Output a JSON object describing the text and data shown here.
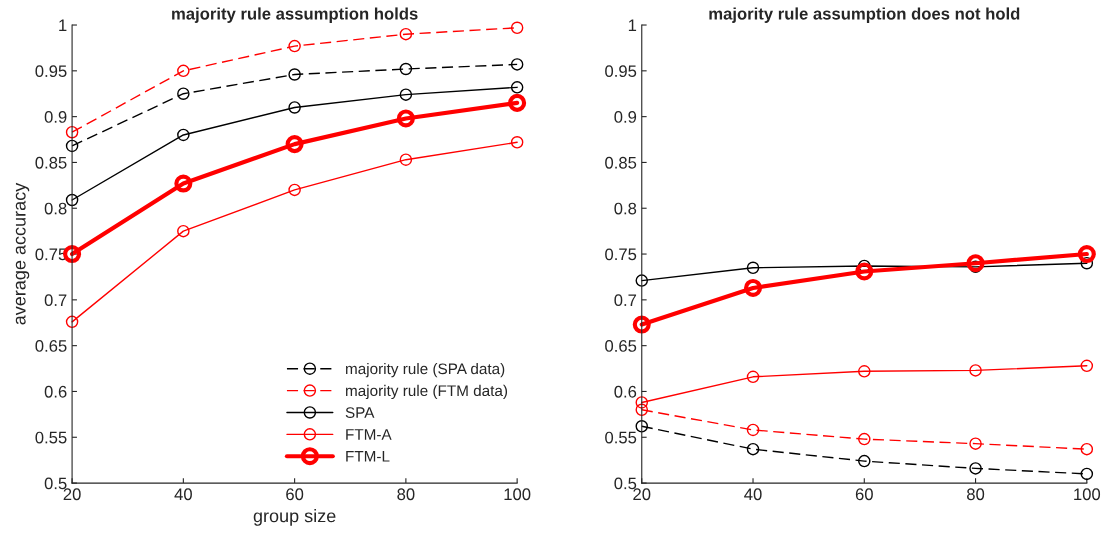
{
  "chart_data": [
    {
      "type": "line",
      "title": "majority rule assumption holds",
      "xlabel": "group size",
      "ylabel": "average accuracy",
      "x": [
        20,
        40,
        60,
        80,
        100
      ],
      "xlim": [
        20,
        100
      ],
      "xticks": [
        20,
        40,
        60,
        80,
        100
      ],
      "ylim": [
        0.5,
        1
      ],
      "yticks": [
        0.5,
        0.55,
        0.6,
        0.65,
        0.7,
        0.75,
        0.8,
        0.85,
        0.9,
        0.95,
        1
      ],
      "marker": "circle",
      "grid": false,
      "legend": "bottom right",
      "series": [
        {
          "name": "majority rule (SPA data)",
          "color": "#000000",
          "line_style": "dashed",
          "values": [
            0.868,
            0.925,
            0.946,
            0.952,
            0.957
          ]
        },
        {
          "name": "majority rule (FTM data)",
          "color": "#ff0000",
          "line_style": "dashed",
          "values": [
            0.883,
            0.95,
            0.977,
            0.99,
            0.997
          ]
        },
        {
          "name": "SPA",
          "color": "#000000",
          "line_style": "solid",
          "values": [
            0.809,
            0.88,
            0.91,
            0.924,
            0.932
          ]
        },
        {
          "name": "FTM-A",
          "color": "#ff0000",
          "line_style": "solid",
          "values": [
            0.676,
            0.775,
            0.82,
            0.853,
            0.872
          ]
        },
        {
          "name": "FTM-L",
          "color": "#ff0000",
          "line_style": "solid",
          "values": [
            0.75,
            0.827,
            0.87,
            0.898,
            0.915
          ]
        }
      ]
    },
    {
      "type": "line",
      "title": "majority rule assumption does not hold",
      "x": [
        20,
        40,
        60,
        80,
        100
      ],
      "xlim": [
        20,
        100
      ],
      "xticks": [
        20,
        40,
        60,
        80,
        100
      ],
      "ylim": [
        0.5,
        1
      ],
      "yticks": [
        0.5,
        0.55,
        0.6,
        0.65,
        0.7,
        0.75,
        0.8,
        0.85,
        0.9,
        0.95,
        1
      ],
      "marker": "circle",
      "grid": false,
      "series": [
        {
          "color": "#000000",
          "line_style": "dashed",
          "values": [
            0.562,
            0.537,
            0.524,
            0.516,
            0.51
          ]
        },
        {
          "color": "#ff0000",
          "line_style": "dashed",
          "values": [
            0.58,
            0.558,
            0.548,
            0.543,
            0.537
          ]
        },
        {
          "color": "#000000",
          "line_style": "solid",
          "values": [
            0.721,
            0.735,
            0.737,
            0.736,
            0.74
          ]
        },
        {
          "color": "#ff0000",
          "line_style": "solid",
          "values": [
            0.588,
            0.616,
            0.622,
            0.623,
            0.628
          ]
        },
        {
          "color": "#ff0000",
          "line_style": "solid",
          "values": [
            0.673,
            0.713,
            0.731,
            0.74,
            0.75
          ]
        }
      ]
    }
  ]
}
